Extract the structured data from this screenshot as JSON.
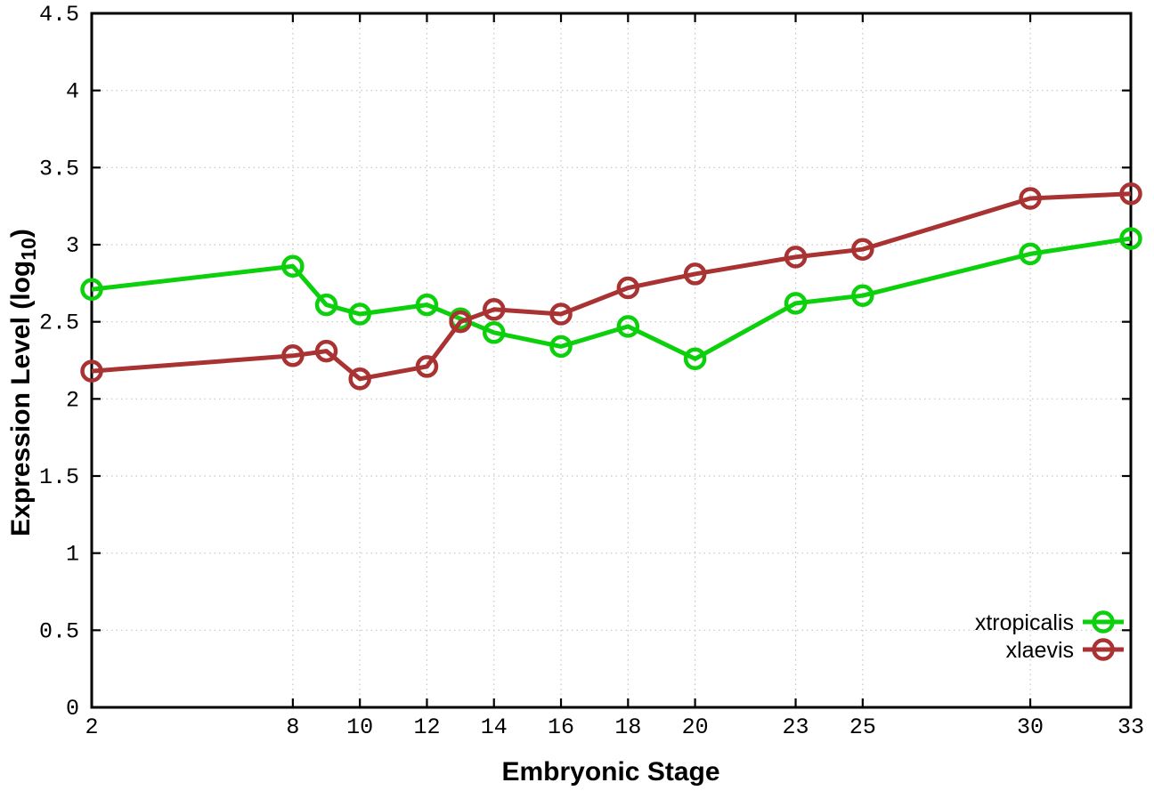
{
  "chart_data": {
    "type": "line",
    "title": "",
    "xlabel": "Embryonic Stage",
    "ylabel": "Expression Level (log10)",
    "ylabel_parts": {
      "main": "Expression Level (log",
      "sub": "10",
      "suffix": ")"
    },
    "x": [
      2,
      8,
      9,
      10,
      12,
      13,
      14,
      16,
      18,
      20,
      23,
      25,
      30,
      33
    ],
    "series": [
      {
        "name": "xtropicalis",
        "color": "#0bd00b",
        "values": [
          2.71,
          2.86,
          2.61,
          2.55,
          2.61,
          2.52,
          2.43,
          2.34,
          2.47,
          2.26,
          2.62,
          2.67,
          2.94,
          3.04
        ]
      },
      {
        "name": "xlaevis",
        "color": "#a93232",
        "values": [
          2.18,
          2.28,
          2.31,
          2.13,
          2.21,
          2.5,
          2.58,
          2.55,
          2.72,
          2.81,
          2.92,
          2.97,
          3.3,
          3.33
        ]
      }
    ],
    "xlim": [
      2,
      33
    ],
    "ylim": [
      0,
      4.5
    ],
    "xticks": {
      "values": [
        2,
        8,
        10,
        12,
        14,
        16,
        18,
        20,
        23,
        25,
        30,
        33
      ],
      "labels": [
        "2",
        "8",
        "10",
        "12",
        "14",
        "16",
        "18",
        "20",
        "23",
        "25",
        "30",
        "33"
      ]
    },
    "yticks": {
      "values": [
        0,
        0.5,
        1,
        1.5,
        2,
        2.5,
        3,
        3.5,
        4,
        4.5
      ],
      "labels": [
        "0",
        "0.5",
        "1",
        "1.5",
        "2",
        "2.5",
        "3",
        "3.5",
        "4",
        "4.5"
      ]
    },
    "grid": "dotted",
    "marker": "open-circle",
    "legend_position": "bottom-right",
    "colors": {
      "background": "#ffffff",
      "border": "#000000",
      "grid": "#c6c6c6",
      "text": "#000000"
    }
  }
}
